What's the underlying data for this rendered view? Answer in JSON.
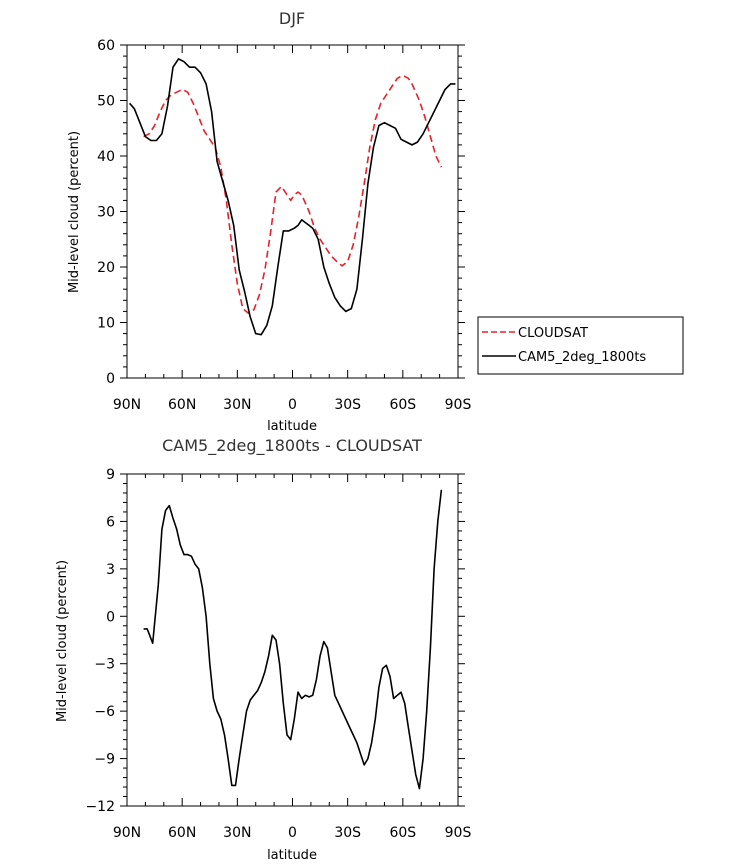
{
  "chart_data": [
    {
      "type": "line",
      "title": "DJF",
      "xlabel": "latitude",
      "ylabel": "Mid-level cloud (percent)",
      "xlim": [
        90,
        -90
      ],
      "ylim": [
        0,
        60
      ],
      "x_ticks": [
        90,
        60,
        30,
        0,
        -30,
        -60,
        -90
      ],
      "x_tick_labels": [
        "90N",
        "60N",
        "30N",
        "0",
        "30S",
        "60S",
        "90S"
      ],
      "y_ticks": [
        0,
        10,
        20,
        30,
        40,
        50,
        60
      ],
      "y_tick_labels": [
        "0",
        "10",
        "20",
        "30",
        "40",
        "50",
        "60"
      ],
      "legend_position": "right",
      "series": [
        {
          "name": "CLOUDSAT",
          "color": "#e8202a",
          "dash": "dashed",
          "x": [
            81,
            78,
            75,
            72,
            69,
            66,
            63,
            60,
            57,
            54,
            51,
            48,
            45,
            42,
            39,
            36,
            33,
            30,
            27,
            24,
            21,
            18,
            15,
            12,
            9,
            6,
            3,
            1,
            -1,
            -3,
            -5,
            -7,
            -9,
            -12,
            -15,
            -18,
            -21,
            -24,
            -27,
            -30,
            -33,
            -36,
            -39,
            -42,
            -45,
            -48,
            -51,
            -54,
            -57,
            -60,
            -63,
            -65,
            -67,
            -69,
            -72,
            -75,
            -78,
            -81
          ],
          "values": [
            43.5,
            44,
            45.5,
            48,
            50,
            51,
            51.5,
            52,
            51.5,
            49.5,
            47,
            44.5,
            43,
            41.5,
            38,
            32,
            24,
            17,
            12.5,
            11.7,
            12.3,
            15,
            19.5,
            26,
            33.5,
            34.5,
            33,
            32,
            33,
            33.5,
            33,
            31.5,
            30,
            27,
            25,
            23.5,
            22,
            21,
            20.2,
            21,
            24,
            29,
            35,
            41.5,
            46.5,
            49.5,
            51,
            52.5,
            54,
            54.5,
            54,
            53,
            51.5,
            50,
            47,
            43.5,
            40,
            38
          ]
        },
        {
          "name": "CAM5_2deg_1800ts",
          "color": "#000000",
          "dash": "solid",
          "x": [
            88.6,
            86,
            83,
            80,
            77,
            74,
            71,
            68,
            65,
            62,
            59,
            56,
            53,
            50,
            47,
            44,
            41,
            38,
            35,
            32,
            29,
            26,
            23,
            20,
            17,
            14,
            11,
            8,
            5,
            2,
            -1,
            -3,
            -5,
            -7,
            -9,
            -11,
            -14,
            -17,
            -20,
            -23,
            -26,
            -29,
            -32,
            -35,
            -38,
            -41,
            -44,
            -47,
            -50,
            -53,
            -56,
            -59,
            -62,
            -65,
            -68,
            -71,
            -74,
            -77,
            -80,
            -83,
            -86,
            -88.6
          ],
          "values": [
            49.5,
            48.5,
            46,
            43.5,
            42.8,
            42.8,
            44,
            49,
            56,
            57.5,
            57,
            56,
            56,
            55,
            53,
            48,
            39,
            35.5,
            32,
            27.5,
            19.5,
            15.5,
            11,
            8,
            7.8,
            9.5,
            13,
            20,
            26.5,
            26.5,
            27,
            27.5,
            28.5,
            28,
            27.5,
            27,
            25,
            20,
            17,
            14.5,
            13,
            12,
            12.5,
            16,
            25,
            35,
            41.5,
            45.5,
            46,
            45.5,
            45,
            43,
            42.5,
            42,
            42.5,
            44,
            46,
            48,
            50,
            52,
            53,
            53
          ]
        }
      ]
    },
    {
      "type": "line",
      "title": "CAM5_2deg_1800ts - CLOUDSAT",
      "xlabel": "latitude",
      "ylabel": "Mid-level cloud (percent)",
      "xlim": [
        90,
        -90
      ],
      "ylim": [
        -12,
        9
      ],
      "x_ticks": [
        90,
        60,
        30,
        0,
        -30,
        -60,
        -90
      ],
      "x_tick_labels": [
        "90N",
        "60N",
        "30N",
        "0",
        "30S",
        "60S",
        "90S"
      ],
      "y_ticks": [
        -12,
        -9,
        -6,
        -3,
        0,
        3,
        6,
        9
      ],
      "y_tick_labels": [
        "-12",
        "-9",
        "-6",
        "-3",
        "0",
        "3",
        "6",
        "9"
      ],
      "series": [
        {
          "name": "",
          "color": "#000000",
          "dash": "solid",
          "x": [
            81,
            79,
            76,
            73,
            71,
            69,
            67,
            65,
            63,
            61,
            59,
            57,
            55,
            53,
            51,
            49,
            47,
            45,
            43,
            41,
            39,
            37,
            35,
            33,
            31,
            29,
            27,
            25,
            23,
            21,
            19,
            17,
            15,
            13,
            11,
            9,
            7,
            5,
            3,
            1,
            -1,
            -3,
            -5,
            -7,
            -9,
            -11,
            -13,
            -15,
            -17,
            -19,
            -21,
            -23,
            -25,
            -27,
            -29,
            -31,
            -33,
            -35,
            -37,
            -39,
            -41,
            -43,
            -45,
            -47,
            -49,
            -51,
            -53,
            -55,
            -57,
            -59,
            -61,
            -63,
            -65,
            -67,
            -69,
            -71,
            -73,
            -75,
            -77,
            -79,
            -81
          ],
          "values": [
            -0.8,
            -0.8,
            -1.7,
            2,
            5.5,
            6.7,
            7,
            6.2,
            5.5,
            4.5,
            3.9,
            3.9,
            3.8,
            3.3,
            3,
            1.8,
            0,
            -3,
            -5.2,
            -6,
            -6.5,
            -7.5,
            -9,
            -10.7,
            -10.7,
            -9,
            -7.5,
            -6,
            -5.3,
            -5,
            -4.7,
            -4.2,
            -3.5,
            -2.5,
            -1.2,
            -1.5,
            -3,
            -5.5,
            -7.5,
            -7.8,
            -6.5,
            -4.8,
            -5.2,
            -5,
            -5.1,
            -5,
            -4,
            -2.5,
            -1.6,
            -2,
            -3.5,
            -5,
            -5.5,
            -6,
            -6.5,
            -7,
            -7.5,
            -8,
            -8.7,
            -9.4,
            -9,
            -8,
            -6.5,
            -4.5,
            -3.3,
            -3.1,
            -3.8,
            -5.2,
            -5,
            -4.8,
            -5.5,
            -7,
            -8.5,
            -10,
            -10.9,
            -9,
            -6,
            -2,
            3,
            6,
            8
          ]
        }
      ]
    }
  ]
}
